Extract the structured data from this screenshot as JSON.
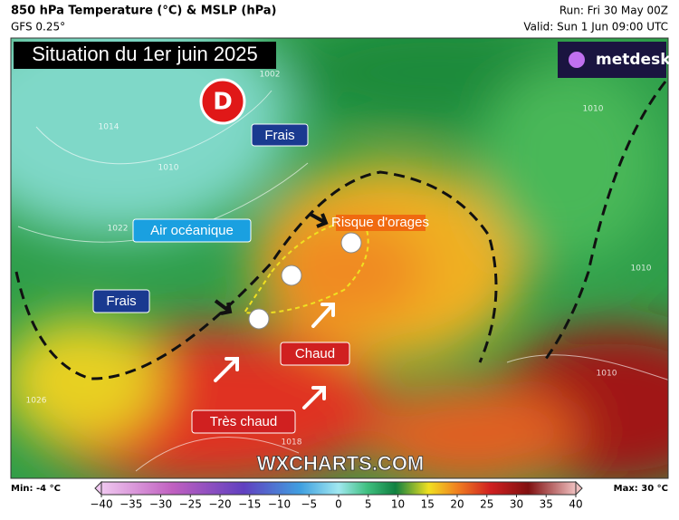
{
  "header": {
    "title": "850 hPa Temperature (°C) & MSLP (hPa)",
    "model": "GFS 0.25°",
    "run": "Run: Fri 30 May 00Z",
    "valid": "Valid: Sun 1 Jun 09:00 UTC"
  },
  "map": {
    "headline": "Situation du 1er juin 2025",
    "brand": "metdesk",
    "low": "D",
    "labels": [
      "Frais",
      "Air océanique",
      "Frais",
      "Risque d'orages",
      "Chaud",
      "Très chaud"
    ],
    "watermark": "WXCHARTS.COM",
    "isobars": [
      "1002",
      "1010",
      "1014",
      "1010",
      "1022",
      "1010",
      "1010",
      "1018",
      "1026"
    ]
  },
  "colorbar": {
    "min": "Min: -4 °C",
    "max": "Max: 30 °C",
    "ticks": [
      "−40",
      "−35",
      "−30",
      "−25",
      "−20",
      "−15",
      "−10",
      "−5",
      "0",
      "5",
      "10",
      "15",
      "20",
      "25",
      "30",
      "35",
      "40"
    ]
  }
}
